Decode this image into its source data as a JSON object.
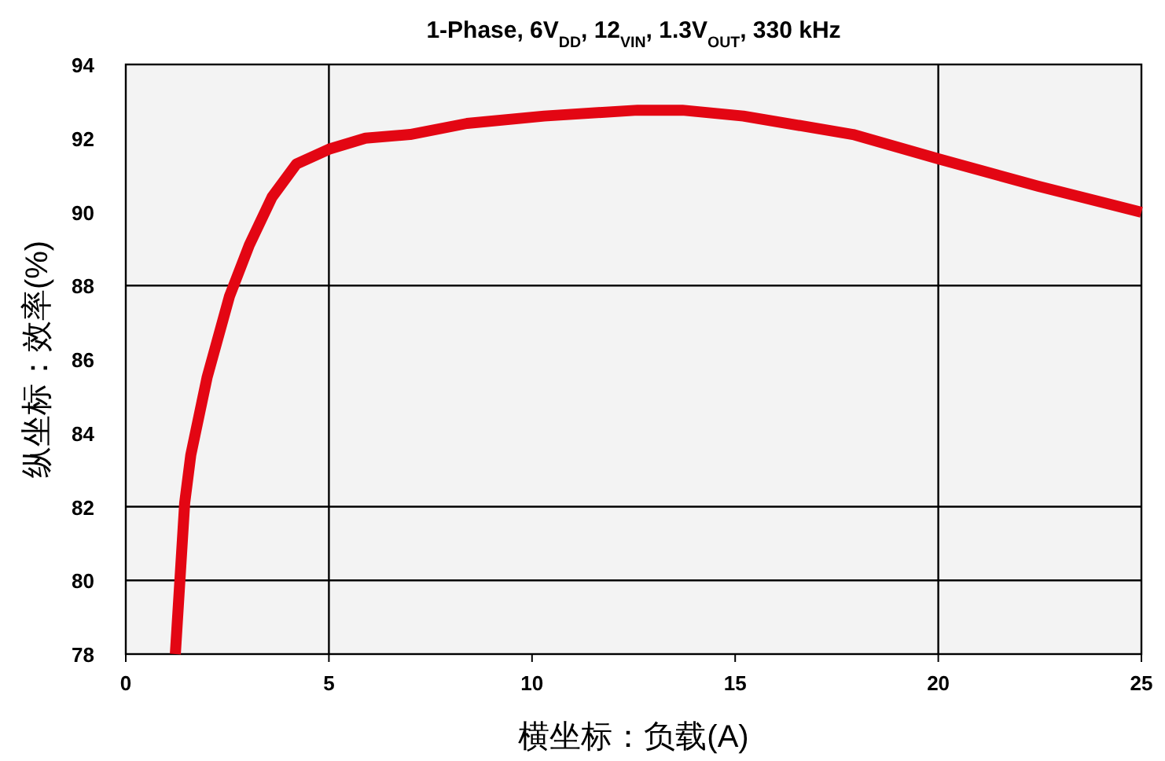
{
  "chart_data": {
    "type": "line",
    "title": "1-Phase, 6V$_{DD}$, 12$_{VIN}$, 1.3V$_{OUT}$, 330 kHz",
    "xlabel": "横坐标：负载(A)",
    "ylabel": "纵坐标：效率(%)",
    "xlim": [
      0,
      25
    ],
    "ylim": [
      78,
      94
    ],
    "xticks": [
      0,
      5,
      10,
      15,
      20,
      25
    ],
    "yticks": [
      78,
      80,
      82,
      84,
      86,
      88,
      90,
      92,
      94
    ],
    "grid": false,
    "marker": "none",
    "line_style": "solid",
    "ref_lines": [
      {
        "axis": "x",
        "value": 5,
        "color": "#000000"
      },
      {
        "axis": "x",
        "value": 20,
        "color": "#000000"
      },
      {
        "axis": "y",
        "value": 88,
        "color": "#000000"
      },
      {
        "axis": "y",
        "value": 82,
        "color": "#000000"
      },
      {
        "axis": "y",
        "value": 80,
        "color": "#000000"
      }
    ],
    "series": [
      {
        "color": "#e30613",
        "x": [
          1.22,
          1.45,
          1.6,
          2.0,
          2.55,
          3.04,
          3.6,
          4.2,
          5.0,
          5.9,
          7.0,
          8.4,
          10.3,
          12.6,
          13.7,
          15.2,
          17.9,
          20.0,
          22.45,
          25
        ],
        "values": [
          78,
          82.1,
          83.4,
          85.5,
          87.7,
          89.1,
          90.4,
          91.3,
          91.7,
          92.0,
          92.1,
          92.4,
          92.6,
          92.76,
          92.76,
          92.6,
          92.1,
          91.44,
          90.7,
          89.99
        ]
      }
    ]
  }
}
